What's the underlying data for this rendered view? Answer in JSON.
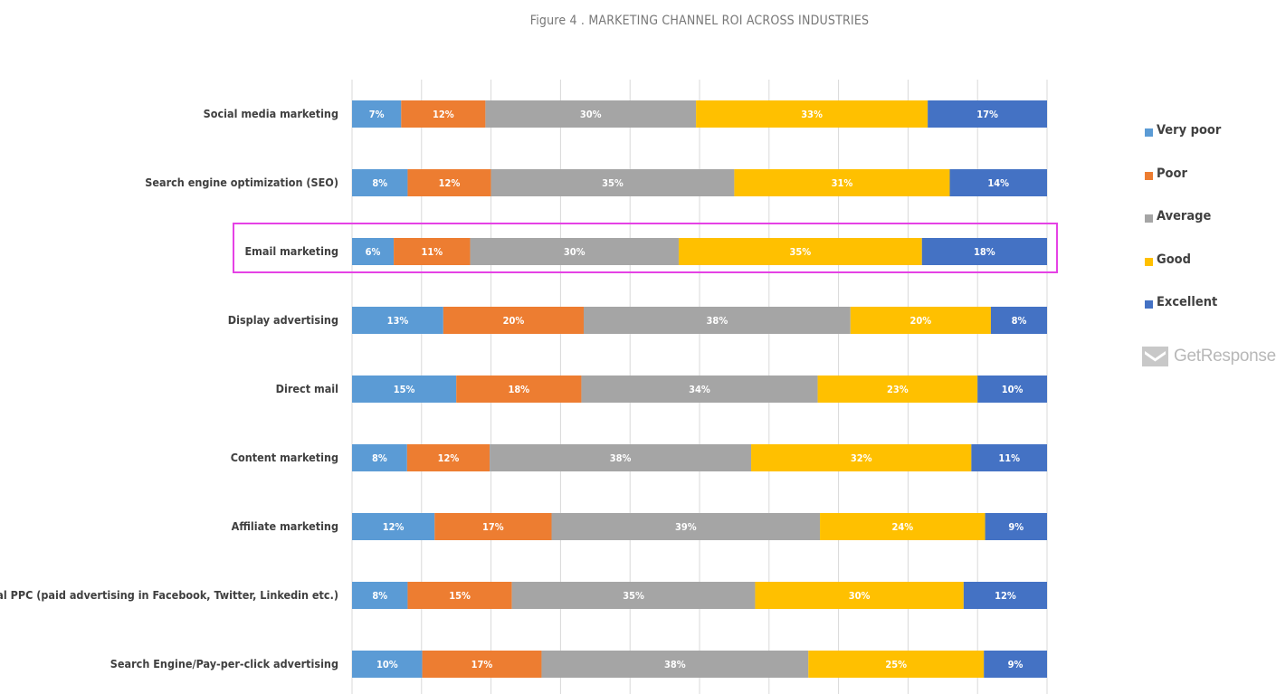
{
  "title": "Figure 4 . MARKETING CHANNEL ROI ACROSS INDUSTRIES",
  "colors": {
    "Very poor": "#5b9bd5",
    "Poor": "#ed7d31",
    "Average": "#a5a5a5",
    "Good": "#ffc000",
    "Excellent": "#4472c4",
    "highlight": "#e542e5"
  },
  "legend": [
    "Very poor",
    "Poor",
    "Average",
    "Good",
    "Excellent"
  ],
  "brand": {
    "name": "GetResponse",
    "icon": "envelope-icon"
  },
  "highlighted_category": "Email marketing",
  "chart_data": {
    "type": "bar",
    "orientation": "horizontal",
    "stacked": true,
    "title": "Figure 4 . MARKETING CHANNEL ROI ACROSS INDUSTRIES",
    "categories": [
      "Social media marketing",
      "Search engine optimization (SEO)",
      "Email marketing",
      "Display advertising",
      "Direct mail",
      "Content marketing",
      "Affiliate marketing",
      "Social PPC (paid advertising in Facebook, Twitter, Linkedin etc.)",
      "Search Engine/Pay-per-click advertising"
    ],
    "series": [
      {
        "name": "Very poor",
        "values": [
          7,
          8,
          6,
          13,
          15,
          8,
          12,
          8,
          10
        ]
      },
      {
        "name": "Poor",
        "values": [
          12,
          12,
          11,
          20,
          18,
          12,
          17,
          15,
          17
        ]
      },
      {
        "name": "Average",
        "values": [
          30,
          35,
          30,
          38,
          34,
          38,
          39,
          35,
          38
        ]
      },
      {
        "name": "Good",
        "values": [
          33,
          31,
          35,
          20,
          23,
          32,
          24,
          30,
          25
        ]
      },
      {
        "name": "Excellent",
        "values": [
          17,
          14,
          18,
          8,
          10,
          11,
          9,
          12,
          9
        ]
      }
    ],
    "value_format": "percent",
    "legend_position": "right",
    "grid": true
  }
}
